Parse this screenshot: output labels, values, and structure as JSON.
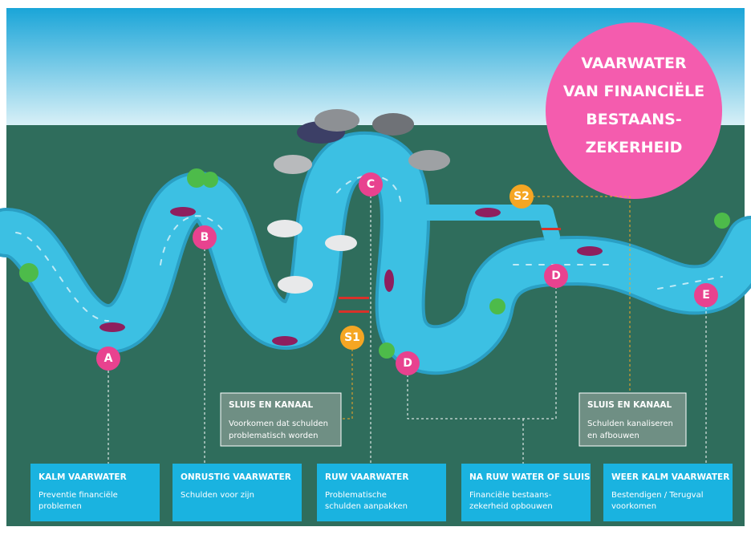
{
  "title_lines": [
    "VAARWATER",
    "VAN FINANCIËLE",
    "BESTAANS-",
    "ZEKERHEID"
  ],
  "markers": [
    {
      "label": "A"
    },
    {
      "label": "B"
    },
    {
      "label": "C"
    },
    {
      "label": "D"
    },
    {
      "label": "D"
    },
    {
      "label": "E"
    },
    {
      "label": "S1"
    },
    {
      "label": "S2"
    }
  ],
  "note_boxes": [
    {
      "title": "SLUIS EN KANAAL",
      "lines": [
        "Voorkomen dat schulden",
        "problematisch worden"
      ]
    },
    {
      "title": "SLUIS EN KANAAL",
      "lines": [
        "Schulden kanaliseren",
        "en afbouwen"
      ]
    }
  ],
  "info_boxes": [
    {
      "title": "KALM VAARWATER",
      "lines": [
        "Preventie financiële",
        "problemen"
      ]
    },
    {
      "title": "ONRUSTIG VAARWATER",
      "lines": [
        "Schulden voor zijn"
      ]
    },
    {
      "title": "RUW VAARWATER",
      "lines": [
        "Problematische",
        "schulden aanpakken"
      ]
    },
    {
      "title": "NA RUW WATER OF SLUIS",
      "lines": [
        "Financiële bestaans-",
        "zekerheid opbouwen"
      ]
    },
    {
      "title": "WEER KALM VAARWATER",
      "lines": [
        "Bestendigen / Terugval",
        "voorkomen"
      ]
    }
  ]
}
